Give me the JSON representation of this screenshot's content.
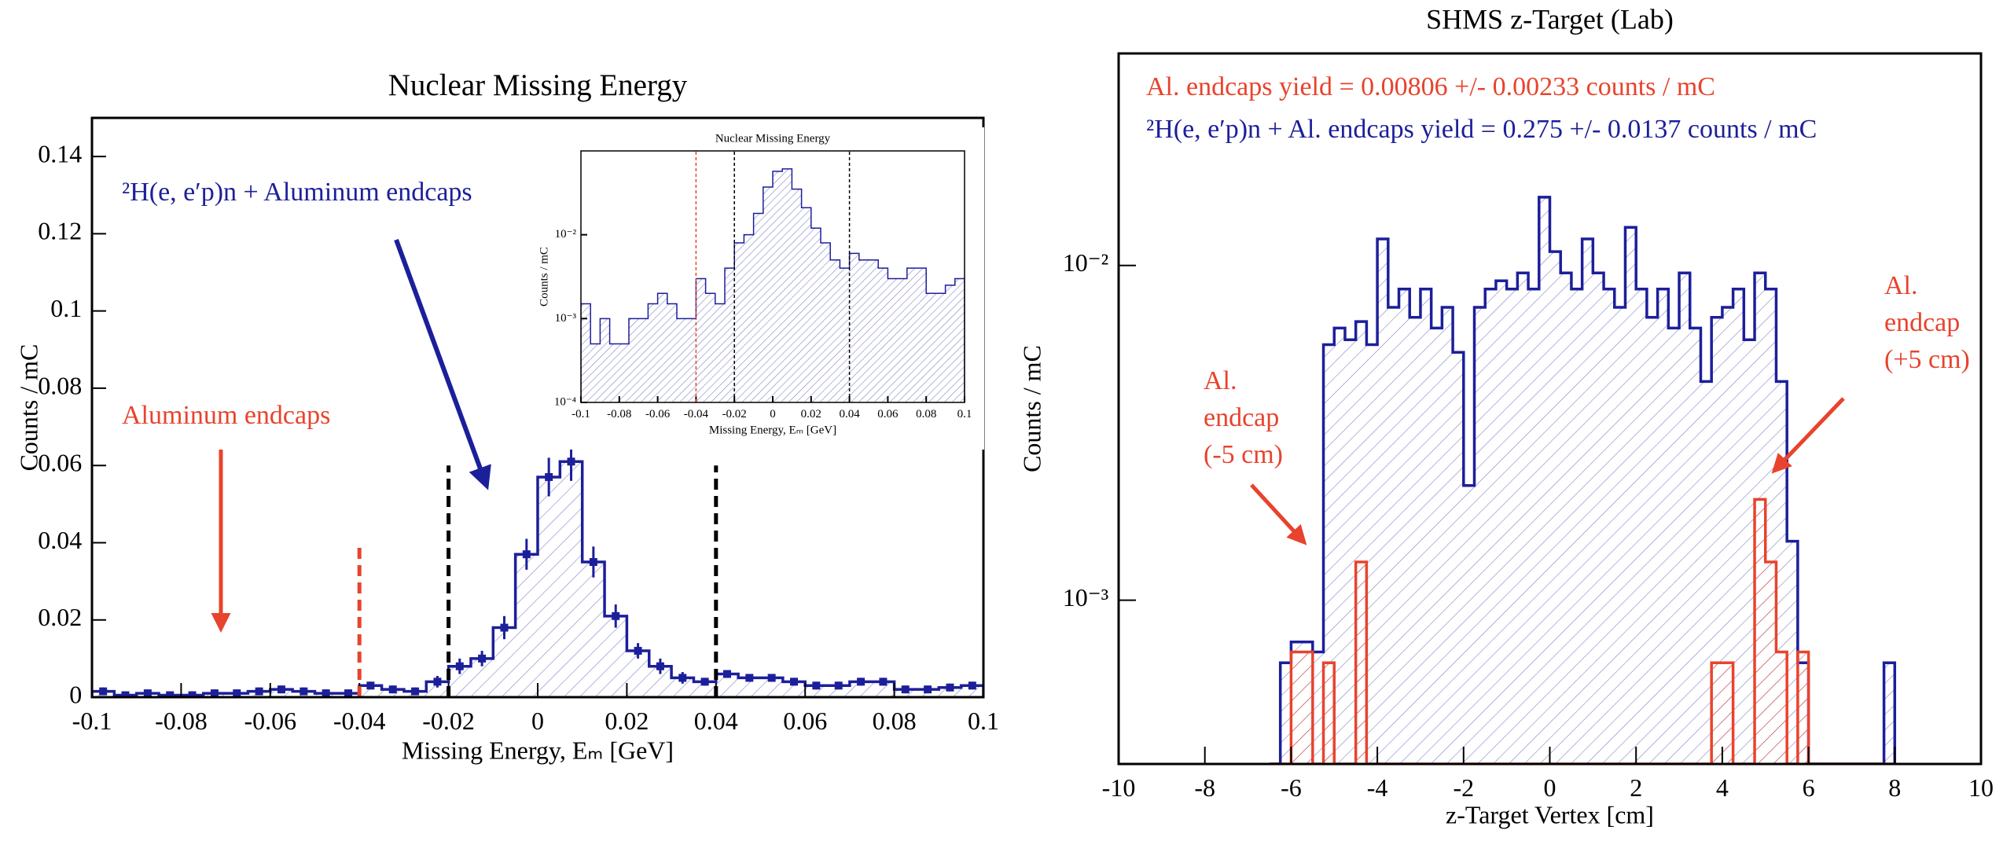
{
  "chart_data": [
    {
      "type": "histogram",
      "title": "Nuclear Missing Energy",
      "xlabel": "Missing Energy, Eₘ [GeV]",
      "ylabel": "Counts / mC",
      "xlim": [
        -0.1,
        0.1
      ],
      "xticks": [
        -0.1,
        -0.08,
        -0.06,
        -0.04,
        -0.02,
        0,
        0.02,
        0.04,
        0.06,
        0.08,
        0.1
      ],
      "ylim": [
        0,
        0.15
      ],
      "yticks": [
        0,
        0.02,
        0.04,
        0.06,
        0.08,
        0.1,
        0.12,
        0.14
      ],
      "log": false,
      "bins": [
        -0.1,
        -0.095,
        -0.09,
        -0.085,
        -0.08,
        -0.075,
        -0.07,
        -0.065,
        -0.06,
        -0.055,
        -0.05,
        -0.045,
        -0.04,
        -0.035,
        -0.03,
        -0.025,
        -0.02,
        -0.015,
        -0.01,
        -0.005,
        0,
        0.005,
        0.01,
        0.015,
        0.02,
        0.025,
        0.03,
        0.035,
        0.04,
        0.045,
        0.05,
        0.055,
        0.06,
        0.065,
        0.07,
        0.075,
        0.08,
        0.085,
        0.09,
        0.095,
        0.1
      ],
      "series": [
        {
          "color": "#1c1f9a",
          "values": [
            0.0015,
            0.0005,
            0.001,
            0.0005,
            0.0005,
            0.001,
            0.001,
            0.0015,
            0.002,
            0.0015,
            0.001,
            0.001,
            0.003,
            0.002,
            0.0015,
            0.004,
            0.008,
            0.01,
            0.018,
            0.037,
            0.057,
            0.061,
            0.035,
            0.021,
            0.012,
            0.008,
            0.005,
            0.004,
            0.006,
            0.005,
            0.005,
            0.004,
            0.003,
            0.003,
            0.004,
            0.004,
            0.002,
            0.002,
            0.0025,
            0.003
          ],
          "errors": [
            0.001,
            0.001,
            0.001,
            0.001,
            0.001,
            0.001,
            0.001,
            0.001,
            0.001,
            0.001,
            0.001,
            0.001,
            0.001,
            0.001,
            0.001,
            0.0015,
            0.002,
            0.002,
            0.003,
            0.004,
            0.005,
            0.005,
            0.004,
            0.003,
            0.002,
            0.002,
            0.0015,
            0.001,
            0.001,
            0.001,
            0.001,
            0.001,
            0.001,
            0.001,
            0.001,
            0.001,
            0.001,
            0.001,
            0.001,
            0.001
          ]
        }
      ],
      "cut_lines": [
        {
          "value": -0.04,
          "top": 0.04,
          "color": "#e8432d"
        },
        {
          "value": -0.02,
          "top": 0.06,
          "color": "#000000"
        },
        {
          "value": 0.04,
          "top": 0.06,
          "color": "#000000"
        }
      ],
      "annotations": [
        {
          "lines": [
            "²H(e, e′p)n + Aluminum endcaps"
          ],
          "color": "#1c1f9a"
        },
        {
          "lines": [
            "Aluminum endcaps"
          ],
          "color": "#e8432d"
        }
      ]
    },
    {
      "type": "histogram",
      "title": "SHMS z-Target (Lab)",
      "xlabel": "z-Target Vertex [cm]",
      "ylabel": "Counts / mC",
      "xlim": [
        -10,
        10
      ],
      "xticks": [
        -10,
        -8,
        -6,
        -4,
        -2,
        0,
        2,
        4,
        6,
        8,
        10
      ],
      "ylim": [
        0.000324,
        0.043
      ],
      "yticks": [
        {
          "value": 0.001,
          "label": "10⁻³"
        },
        {
          "value": 0.01,
          "label": "10⁻²"
        }
      ],
      "log": true,
      "bins": [
        -6.5,
        -6.25,
        -6,
        -5.75,
        -5.5,
        -5.25,
        -5,
        -4.75,
        -4.5,
        -4.25,
        -4,
        -3.75,
        -3.5,
        -3.25,
        -3,
        -2.75,
        -2.5,
        -2.25,
        -2,
        -1.75,
        -1.5,
        -1.25,
        -1,
        -0.75,
        -0.5,
        -0.25,
        0,
        0.25,
        0.5,
        0.75,
        1,
        1.25,
        1.5,
        1.75,
        2,
        2.25,
        2.5,
        2.75,
        3,
        3.25,
        3.5,
        3.75,
        4,
        4.25,
        4.5,
        4.75,
        5,
        5.25,
        5.5,
        5.75,
        6,
        6.25,
        6.5,
        6.75,
        7,
        7.25,
        7.5,
        7.75,
        8
      ],
      "series": [
        {
          "color": "#1c1f9a",
          "values": [
            0,
            0.00065,
            0.00075,
            0.00075,
            0.0007,
            0.0058,
            0.0065,
            0.006,
            0.0068,
            0.0058,
            0.012,
            0.0075,
            0.0085,
            0.007,
            0.0085,
            0.0065,
            0.0075,
            0.0055,
            0.0022,
            0.0075,
            0.0085,
            0.009,
            0.0085,
            0.0095,
            0.0085,
            0.016,
            0.011,
            0.0095,
            0.0085,
            0.012,
            0.0095,
            0.0085,
            0.0075,
            0.013,
            0.0085,
            0.007,
            0.0085,
            0.0065,
            0.0095,
            0.0065,
            0.0045,
            0.007,
            0.0075,
            0.0085,
            0.006,
            0.0095,
            0.0085,
            0.0045,
            0.0015,
            0.00065,
            0,
            0,
            0,
            0,
            0,
            0,
            0,
            0.00065
          ]
        },
        {
          "color": "#e8432d",
          "values": [
            0,
            0,
            0.0007,
            0.0007,
            0,
            0.00065,
            0,
            0,
            0.0013,
            0,
            0,
            0,
            0,
            0,
            0,
            0,
            0,
            0,
            0,
            0,
            0,
            0,
            0,
            0,
            0,
            0,
            0,
            0,
            0,
            0,
            0,
            0,
            0,
            0,
            0,
            0,
            0,
            0,
            0,
            0,
            0,
            0.00065,
            0.00065,
            0,
            0,
            0.002,
            0.0013,
            0.0007,
            0,
            0.0007,
            0,
            0,
            0,
            0,
            0,
            0,
            0,
            0
          ]
        }
      ],
      "annotations": [
        {
          "lines": [
            "Al. endcaps yield =  0.00806 +/- 0.00233 counts / mC"
          ],
          "color": "#e8432d"
        },
        {
          "lines": [
            "²H(e, e′p)n + Al. endcaps yield =  0.275 +/- 0.0137 counts / mC"
          ],
          "color": "#1c1f9a"
        },
        {
          "lines": [
            "Al.",
            "endcap",
            "(-5 cm)"
          ],
          "color": "#e8432d"
        },
        {
          "lines": [
            "Al.",
            "endcap",
            "(+5 cm)"
          ],
          "color": "#e8432d"
        }
      ]
    },
    {
      "type": "histogram",
      "title": "Nuclear Missing Energy",
      "xlabel": "Missing Energy, Eₘ [GeV]",
      "ylabel": "Counts / mC",
      "xlim": [
        -0.1,
        0.1
      ],
      "xticks": [
        -0.1,
        -0.08,
        -0.06,
        -0.04,
        -0.02,
        0,
        0.02,
        0.04,
        0.06,
        0.08,
        0.1
      ],
      "ylim": [
        0.0001,
        0.1
      ],
      "yticks": [
        {
          "value": 0.0001,
          "label": "10⁻⁴"
        },
        {
          "value": 0.001,
          "label": "10⁻³"
        },
        {
          "value": 0.01,
          "label": "10⁻²"
        }
      ],
      "log": true,
      "bins": [
        -0.1,
        -0.095,
        -0.09,
        -0.085,
        -0.08,
        -0.075,
        -0.07,
        -0.065,
        -0.06,
        -0.055,
        -0.05,
        -0.045,
        -0.04,
        -0.035,
        -0.03,
        -0.025,
        -0.02,
        -0.015,
        -0.01,
        -0.005,
        0,
        0.005,
        0.01,
        0.015,
        0.02,
        0.025,
        0.03,
        0.035,
        0.04,
        0.045,
        0.05,
        0.055,
        0.06,
        0.065,
        0.07,
        0.075,
        0.08,
        0.085,
        0.09,
        0.095,
        0.1
      ],
      "series": [
        {
          "color": "#1c1f9a",
          "values": [
            0.0015,
            0.0005,
            0.001,
            0.0005,
            0.0005,
            0.001,
            0.001,
            0.0015,
            0.002,
            0.0015,
            0.001,
            0.001,
            0.003,
            0.002,
            0.0015,
            0.004,
            0.008,
            0.01,
            0.018,
            0.037,
            0.057,
            0.061,
            0.035,
            0.021,
            0.012,
            0.008,
            0.005,
            0.004,
            0.006,
            0.005,
            0.005,
            0.004,
            0.003,
            0.003,
            0.004,
            0.004,
            0.002,
            0.002,
            0.0025,
            0.003
          ]
        }
      ],
      "cut_lines": [
        {
          "value": -0.04,
          "color": "#e8432d"
        },
        {
          "value": -0.02,
          "color": "#000000"
        },
        {
          "value": 0.04,
          "color": "#000000"
        }
      ]
    }
  ]
}
